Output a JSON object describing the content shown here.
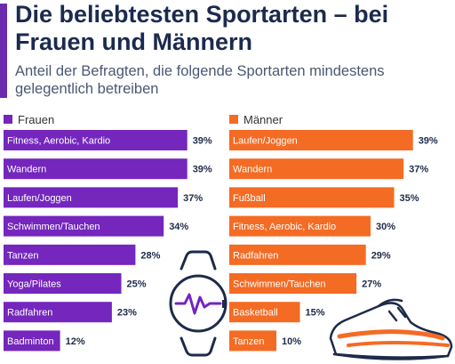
{
  "header": {
    "title": "Die beliebtesten Sportarten – bei Frauen und Männern",
    "subtitle": "Anteil der Befragten, die folgende Sportarten mindestens gelegentlich betreiben"
  },
  "colors": {
    "frauen": "#7426bd",
    "maenner": "#f46b24",
    "accent": "#6a2bb0"
  },
  "icons": [
    "smartwatch-icon",
    "running-shoe-icon"
  ],
  "chart_data": [
    {
      "type": "bar",
      "orientation": "horizontal",
      "legend": "Frauen",
      "unit": "%",
      "categories": [
        "Fitness, Aerobic, Kardio",
        "Wandern",
        "Laufen/Joggen",
        "Schwimmen/Tauchen",
        "Tanzen",
        "Yoga/Pilates",
        "Radfahren",
        "Badminton"
      ],
      "values": [
        39,
        39,
        37,
        34,
        28,
        25,
        23,
        12
      ],
      "labels": [
        "39%",
        "39%",
        "37%",
        "34%",
        "28%",
        "25%",
        "23%",
        "12%"
      ]
    },
    {
      "type": "bar",
      "orientation": "horizontal",
      "legend": "Männer",
      "unit": "%",
      "categories": [
        "Laufen/Joggen",
        "Wandern",
        "Fußball",
        "Fitness, Aerobic, Kardio",
        "Radfahren",
        "Schwimmen/Tauchen",
        "Basketball",
        "Tanzen"
      ],
      "values": [
        39,
        37,
        35,
        30,
        29,
        27,
        15,
        10
      ],
      "labels": [
        "39%",
        "37%",
        "35%",
        "30%",
        "29%",
        "27%",
        "15%",
        "10%"
      ]
    }
  ]
}
